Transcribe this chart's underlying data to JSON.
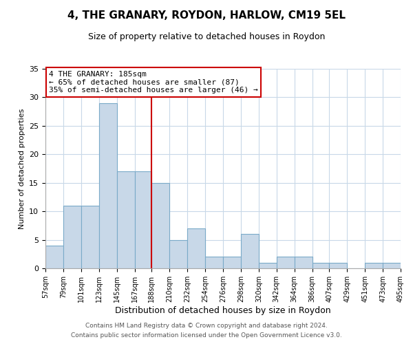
{
  "title": "4, THE GRANARY, ROYDON, HARLOW, CM19 5EL",
  "subtitle": "Size of property relative to detached houses in Roydon",
  "xlabel": "Distribution of detached houses by size in Roydon",
  "ylabel": "Number of detached properties",
  "footer_line1": "Contains HM Land Registry data © Crown copyright and database right 2024.",
  "footer_line2": "Contains public sector information licensed under the Open Government Licence v3.0.",
  "annotation_title": "4 THE GRANARY: 185sqm",
  "annotation_line2": "← 65% of detached houses are smaller (87)",
  "annotation_line3": "35% of semi-detached houses are larger (46) →",
  "bar_color": "#c8d8e8",
  "bar_edgecolor": "#7aaac8",
  "vline_color": "#cc0000",
  "vline_x": 188,
  "annotation_box_edgecolor": "#cc0000",
  "background_color": "#ffffff",
  "grid_color": "#c8d8e8",
  "bins": [
    57,
    79,
    101,
    123,
    145,
    167,
    188,
    210,
    232,
    254,
    276,
    298,
    320,
    342,
    364,
    386,
    407,
    429,
    451,
    473,
    495
  ],
  "counts": [
    4,
    11,
    11,
    29,
    17,
    17,
    15,
    5,
    7,
    2,
    2,
    6,
    1,
    2,
    2,
    1,
    1,
    0,
    1,
    1
  ],
  "tick_labels": [
    "57sqm",
    "79sqm",
    "101sqm",
    "123sqm",
    "145sqm",
    "167sqm",
    "188sqm",
    "210sqm",
    "232sqm",
    "254sqm",
    "276sqm",
    "298sqm",
    "320sqm",
    "342sqm",
    "364sqm",
    "386sqm",
    "407sqm",
    "429sqm",
    "451sqm",
    "473sqm",
    "495sqm"
  ],
  "ylim": [
    0,
    35
  ],
  "yticks": [
    0,
    5,
    10,
    15,
    20,
    25,
    30,
    35
  ],
  "title_fontsize": 11,
  "subtitle_fontsize": 9,
  "xlabel_fontsize": 9,
  "ylabel_fontsize": 8,
  "tick_fontsize": 7,
  "annotation_fontsize": 8,
  "footer_fontsize": 6.5
}
